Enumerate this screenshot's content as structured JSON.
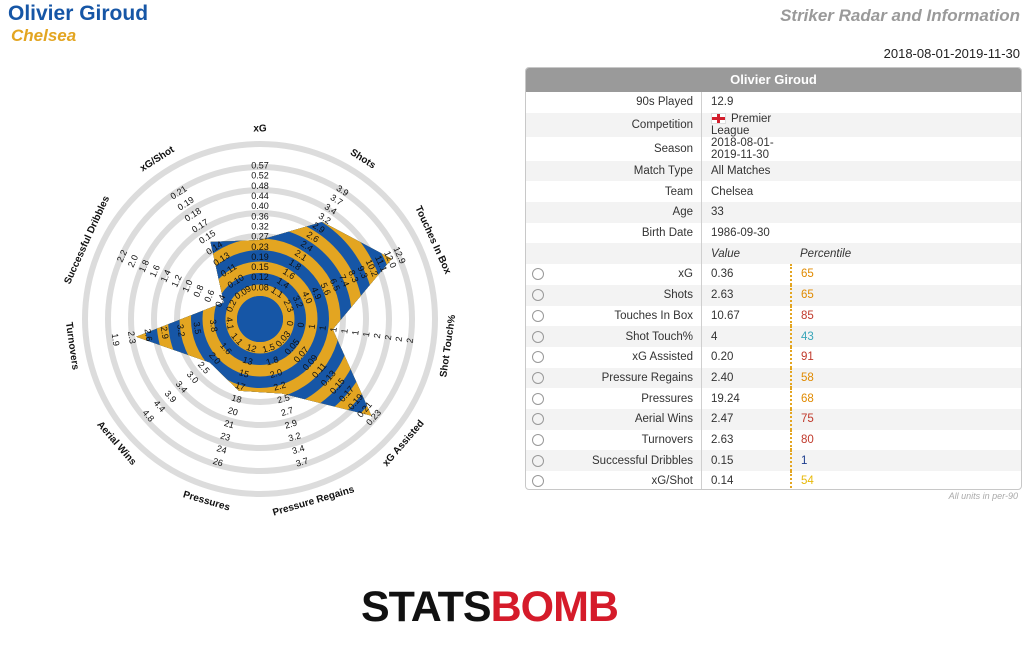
{
  "header": {
    "player": "Olivier Giroud",
    "team": "Chelsea",
    "title": "Striker Radar and Information",
    "date_range": "2018-08-01-2019-11-30"
  },
  "panel": {
    "name": "Olivier Giroud",
    "info": [
      {
        "label": "90s Played",
        "value": "12.9"
      },
      {
        "label": "Competition",
        "value": "Premier League"
      },
      {
        "label": "Season",
        "value": "2018-08-01-2019-11-30"
      },
      {
        "label": "Match Type",
        "value": "All Matches"
      },
      {
        "label": "Team",
        "value": "Chelsea"
      },
      {
        "label": "Age",
        "value": "33"
      },
      {
        "label": "Birth Date",
        "value": "1986-09-30"
      }
    ],
    "value_header": "Value",
    "percentile_header": "Percentile",
    "footnote": "All units in per-90"
  },
  "colors": {
    "blue": "#1656a6",
    "gold": "#e3a521",
    "grey_ring": "#dcdcdc",
    "p_orange": "#e08a00",
    "p_red": "#c0392b",
    "p_teal": "#3aa6b9",
    "p_gold": "#e8b90a",
    "p_navy": "#1a3a8c"
  },
  "logo": {
    "part1": "STATS",
    "part2": "BOMB"
  },
  "chart_data": {
    "type": "radar",
    "metrics": [
      {
        "name": "xG",
        "value": 0.36,
        "display": "0.36",
        "percentile": 65,
        "pcolor": "p_orange",
        "ticks": [
          "0.08",
          "0.12",
          "0.15",
          "0.19",
          "0.23",
          "0.27",
          "0.32",
          "0.36",
          "0.40",
          "0.44",
          "0.48",
          "0.52",
          "0.57"
        ]
      },
      {
        "name": "Shots",
        "value": 2.63,
        "display": "2.63",
        "percentile": 65,
        "pcolor": "p_orange",
        "ticks": [
          "1.1",
          "1.4",
          "1.6",
          "1.8",
          "2.1",
          "2.4",
          "2.6",
          "2.9",
          "3.2",
          "3.4",
          "3.7",
          "3.9"
        ]
      },
      {
        "name": "Touches In Box",
        "value": 10.67,
        "display": "10.67",
        "percentile": 85,
        "pcolor": "p_red",
        "ticks": [
          "2.3",
          "3.2",
          "4.0",
          "4.9",
          "5.6",
          "6.5",
          "7.4",
          "8.3",
          "9.3",
          "10.2",
          "11.1",
          "12.0",
          "12.9"
        ]
      },
      {
        "name": "Shot Touch%",
        "value": 4,
        "display": "4",
        "percentile": 43,
        "pcolor": "p_teal",
        "ticks": [
          "0",
          "0",
          "1",
          "1",
          "1",
          "1",
          "1",
          "1",
          "2",
          "2",
          "2",
          "2"
        ]
      },
      {
        "name": "xG Assisted",
        "value": 0.2,
        "display": "0.20",
        "percentile": 91,
        "pcolor": "p_red",
        "ticks": [
          "0.03",
          "0.05",
          "0.07",
          "0.09",
          "0.11",
          "0.13",
          "0.15",
          "0.17",
          "0.19",
          "0.21",
          "0.23"
        ]
      },
      {
        "name": "Pressure Regains",
        "value": 2.4,
        "display": "2.40",
        "percentile": 58,
        "pcolor": "p_orange",
        "ticks": [
          "1.5",
          "1.8",
          "2.0",
          "2.2",
          "2.5",
          "2.7",
          "2.9",
          "3.2",
          "3.4",
          "3.7"
        ]
      },
      {
        "name": "Pressures",
        "value": 19.24,
        "display": "19.24",
        "percentile": 68,
        "pcolor": "p_orange",
        "ticks": [
          "12",
          "13",
          "15",
          "17",
          "18",
          "20",
          "21",
          "23",
          "24",
          "26"
        ]
      },
      {
        "name": "Aerial Wins",
        "value": 2.47,
        "display": "2.47",
        "percentile": 75,
        "pcolor": "p_red",
        "ticks": [
          "1.1",
          "1.6",
          "2.0",
          "2.5",
          "3.0",
          "3.4",
          "3.9",
          "4.4",
          "4.8"
        ]
      },
      {
        "name": "Turnovers",
        "value": 2.63,
        "display": "2.63",
        "percentile": 80,
        "pcolor": "p_red",
        "ticks": [
          "4.1",
          "3.8",
          "3.5",
          "3.2",
          "2.9",
          "2.6",
          "2.3",
          "1.9"
        ]
      },
      {
        "name": "Successful Dribbles",
        "value": 0.15,
        "display": "0.15",
        "percentile": 1,
        "pcolor": "p_navy",
        "ticks": [
          "0.2",
          "0.4",
          "0.6",
          "0.8",
          "1.0",
          "1.2",
          "1.4",
          "1.6",
          "1.8",
          "2.0",
          "2.2"
        ]
      },
      {
        "name": "xG/Shot",
        "value": 0.14,
        "display": "0.14",
        "percentile": 54,
        "pcolor": "p_gold",
        "ticks": [
          "0.09",
          "0.10",
          "0.11",
          "0.13",
          "0.14",
          "0.15",
          "0.17",
          "0.18",
          "0.19",
          "0.21"
        ]
      }
    ],
    "polygon_fractions": [
      0.4,
      0.66,
      0.87,
      0.36,
      0.89,
      0.39,
      0.37,
      0.31,
      0.73,
      0.12,
      0.49
    ],
    "bands": 5
  }
}
